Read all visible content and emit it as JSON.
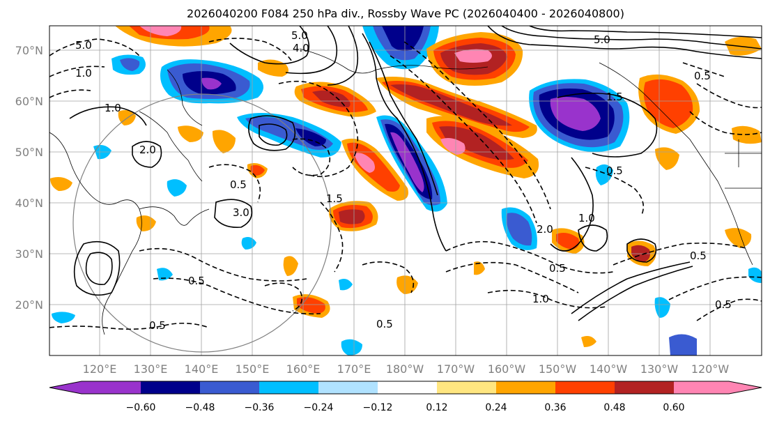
{
  "title": "2026040200 F084 250 hPa div., Rossby Wave PC (2026040400 - 2026040800)",
  "latitude_labels": [
    "70°N",
    "60°N",
    "50°N",
    "40°N",
    "30°N",
    "20°N"
  ],
  "longitude_labels": [
    "120°E",
    "130°E",
    "140°E",
    "150°E",
    "160°E",
    "170°E",
    "180°W",
    "170°W",
    "160°W",
    "150°W",
    "140°W",
    "130°W",
    "120°W"
  ],
  "colorbar": {
    "colors": [
      "#9933cc",
      "#00008b",
      "#3a5bd1",
      "#00bfff",
      "#b0e2ff",
      "#ffffff",
      "#ffe680",
      "#ffa500",
      "#ff4000",
      "#b22222",
      "#ff85b3"
    ],
    "tick_labels": [
      "−0.60",
      "−0.48",
      "−0.36",
      "−0.24",
      "−0.12",
      "0.12",
      "0.24",
      "0.36",
      "0.48",
      "0.60"
    ]
  },
  "contour_labels": [
    {
      "text": "5.0"
    },
    {
      "text": "4.0"
    },
    {
      "text": "5.0"
    },
    {
      "text": "1.0"
    },
    {
      "text": "1.0"
    },
    {
      "text": "2.0"
    },
    {
      "text": "3.0"
    },
    {
      "text": "0.5"
    },
    {
      "text": "1.5"
    },
    {
      "text": "0.5"
    },
    {
      "text": "0.5"
    },
    {
      "text": "0.5"
    },
    {
      "text": "1.0"
    },
    {
      "text": "0.5"
    },
    {
      "text": "1.5"
    },
    {
      "text": "5.0"
    },
    {
      "text": "0.5"
    },
    {
      "text": "2.0"
    },
    {
      "text": "1.0"
    },
    {
      "text": "0.5"
    },
    {
      "text": "0.5"
    },
    {
      "text": "0.5"
    }
  ]
}
